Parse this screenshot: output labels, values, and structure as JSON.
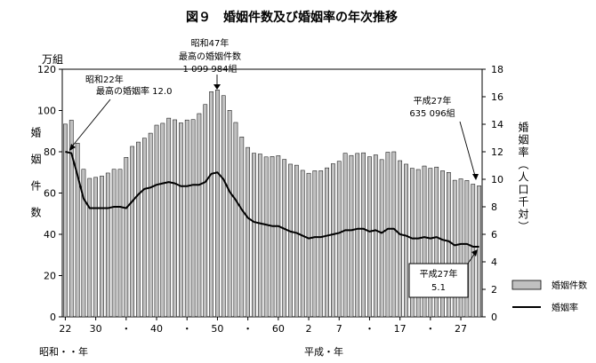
{
  "chart_data": {
    "type": "bar+line",
    "title": "図９　婚姻件数及び婚姻率の年次推移",
    "x": {
      "era_showa_label": "昭和・・年",
      "era_heisei_label": "平成・年",
      "tick_labels": [
        "22",
        "30",
        "・",
        "40",
        "・",
        "50",
        "・",
        "60",
        "2",
        "7",
        "・",
        "17",
        "・",
        "27"
      ],
      "years": [
        "S22",
        "S23",
        "S24",
        "S25",
        "S26",
        "S27",
        "S28",
        "S29",
        "S30",
        "S31",
        "S32",
        "S33",
        "S34",
        "S35",
        "S36",
        "S37",
        "S38",
        "S39",
        "S40",
        "S41",
        "S42",
        "S43",
        "S44",
        "S45",
        "S46",
        "S47",
        "S48",
        "S49",
        "S50",
        "S51",
        "S52",
        "S53",
        "S54",
        "S55",
        "S56",
        "S57",
        "S58",
        "S59",
        "S60",
        "S61",
        "S62",
        "S63",
        "H1",
        "H2",
        "H3",
        "H4",
        "H5",
        "H6",
        "H7",
        "H8",
        "H9",
        "H10",
        "H11",
        "H12",
        "H13",
        "H14",
        "H15",
        "H16",
        "H17",
        "H18",
        "H19",
        "H20",
        "H21",
        "H22",
        "H23",
        "H24",
        "H25",
        "H26",
        "H27"
      ]
    },
    "y_left": {
      "unit": "万組",
      "label": "婚姻件数",
      "ticks": [
        "0",
        "20",
        "40",
        "60",
        "80",
        "100",
        "120"
      ],
      "range": [
        0,
        120
      ]
    },
    "y_right": {
      "label": "婚姻率（人口千対）",
      "ticks": [
        "0",
        "2",
        "4",
        "6",
        "8",
        "10",
        "12",
        "14",
        "16",
        "18"
      ],
      "range": [
        0,
        18
      ]
    },
    "series": [
      {
        "name": "婚姻件数",
        "axis": "left",
        "type": "bar",
        "color": "#c0c0c0",
        "values": [
          93.4,
          95.3,
          84.2,
          71.5,
          67.1,
          67.6,
          68.2,
          69.7,
          71.5,
          71.5,
          77.3,
          82.6,
          84.7,
          86.6,
          89.0,
          92.9,
          93.8,
          96.3,
          95.5,
          94.0,
          95.4,
          95.6,
          98.5,
          102.9,
          109.1,
          110.0,
          107.2,
          100.1,
          94.2,
          87.2,
          82.1,
          79.3,
          78.9,
          77.5,
          77.7,
          78.1,
          76.3,
          74.0,
          73.5,
          71.0,
          69.6,
          70.8,
          70.8,
          72.2,
          74.2,
          75.4,
          79.3,
          78.2,
          79.2,
          79.5,
          77.6,
          78.5,
          76.2,
          79.8,
          80.0,
          75.7,
          74.0,
          72.0,
          71.4,
          73.1,
          72.0,
          72.6,
          70.8,
          70.0,
          66.2,
          66.9,
          66.1,
          64.3,
          63.5
        ]
      },
      {
        "name": "婚姻率",
        "axis": "right",
        "type": "line",
        "color": "#000000",
        "values": [
          12.0,
          11.9,
          10.3,
          8.6,
          7.9,
          7.9,
          7.9,
          7.9,
          8.0,
          8.0,
          7.9,
          8.4,
          8.9,
          9.3,
          9.4,
          9.6,
          9.7,
          9.8,
          9.7,
          9.5,
          9.5,
          9.6,
          9.6,
          9.8,
          10.4,
          10.5,
          10.0,
          9.1,
          8.5,
          7.8,
          7.2,
          6.9,
          6.8,
          6.7,
          6.6,
          6.6,
          6.4,
          6.2,
          6.1,
          5.9,
          5.7,
          5.8,
          5.8,
          5.9,
          6.0,
          6.1,
          6.3,
          6.3,
          6.4,
          6.4,
          6.2,
          6.3,
          6.1,
          6.4,
          6.4,
          6.0,
          5.9,
          5.7,
          5.7,
          5.8,
          5.7,
          5.8,
          5.6,
          5.5,
          5.2,
          5.3,
          5.3,
          5.1,
          5.1
        ]
      }
    ],
    "annotations": {
      "showa22_line1": "昭和22年",
      "showa22_line2": "最高の婚姻率 12.0",
      "showa47_line1": "昭和47年",
      "showa47_line2": "最高の婚姻件数",
      "showa47_line3": "1 099 984組",
      "heisei27_bar_line1": "平成27年",
      "heisei27_bar_line2": "635 096組",
      "heisei27_rate_line1": "平成27年",
      "heisei27_rate_line2": "5.1"
    },
    "legend": {
      "position": "bottom-right",
      "bar_label": "婚姻件数",
      "line_label": "婚姻率"
    }
  }
}
